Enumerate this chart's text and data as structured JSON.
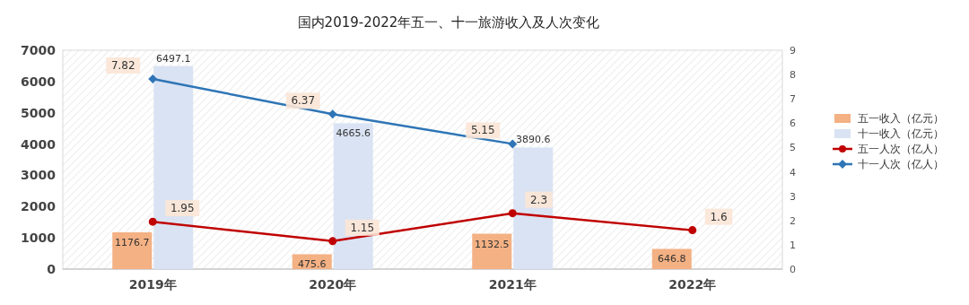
{
  "chart_data": {
    "type": "bar",
    "title": "国内2019-2022年五一、十一旅游收入及人次变化",
    "categories": [
      "2019年",
      "2020年",
      "2021年",
      "2022年"
    ],
    "series": [
      {
        "name": "五一收入（亿元）",
        "color": "#f4b183",
        "values": [
          1176.7,
          475.6,
          1132.5,
          646.8
        ]
      },
      {
        "name": "十一收入（亿元）",
        "color": "#dae3f3",
        "values": [
          6497.1,
          4665.6,
          3890.6,
          null
        ]
      },
      {
        "name": "五一人次（亿人）",
        "type": "line",
        "axis": "y2",
        "marker": "circle",
        "color": "#c00000",
        "values": [
          1.95,
          1.15,
          2.3,
          1.6
        ]
      },
      {
        "name": "十一人次（亿人）",
        "type": "line",
        "axis": "y2",
        "marker": "diamond",
        "color": "#2e75b6",
        "values": [
          7.82,
          6.37,
          5.15,
          null
        ]
      }
    ],
    "ylim": [
      0,
      7000
    ],
    "yticks": [
      0,
      1000,
      2000,
      3000,
      4000,
      5000,
      6000,
      7000
    ],
    "y2lim": [
      0,
      9
    ],
    "y2ticks": [
      0,
      1,
      2,
      3,
      4,
      5,
      6,
      7,
      8,
      9
    ],
    "data_labels": true,
    "legend": "right",
    "grid": false
  }
}
